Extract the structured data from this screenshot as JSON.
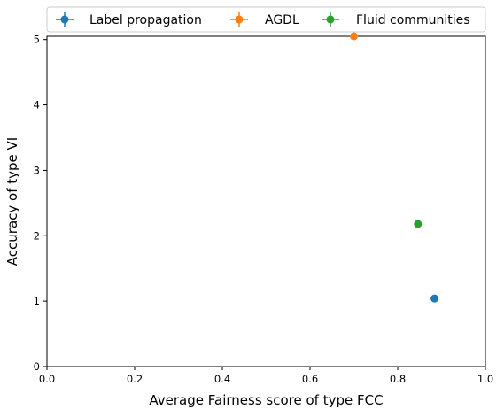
{
  "chart_data": {
    "type": "scatter",
    "title": "",
    "xlabel": "Average Fairness score of type FCC",
    "ylabel": "Accuracy of type VI",
    "xlim": [
      0,
      1
    ],
    "ylim": [
      0,
      5.05
    ],
    "x_ticks": [
      "0.0",
      "0.2",
      "0.4",
      "0.6",
      "0.8",
      "1.0"
    ],
    "y_ticks": [
      "0",
      "1",
      "2",
      "3",
      "4",
      "5"
    ],
    "grid": false,
    "legend_position": "top",
    "series": [
      {
        "name": "Label propagation",
        "color": "#1f77b4",
        "points": [
          {
            "x": 0.884,
            "y": 1.04
          }
        ]
      },
      {
        "name": "AGDL",
        "color": "#ff7f0e",
        "points": [
          {
            "x": 0.7,
            "y": 5.05
          }
        ]
      },
      {
        "name": "Fluid communities",
        "color": "#2ca02c",
        "points": [
          {
            "x": 0.846,
            "y": 2.18
          }
        ]
      }
    ]
  }
}
